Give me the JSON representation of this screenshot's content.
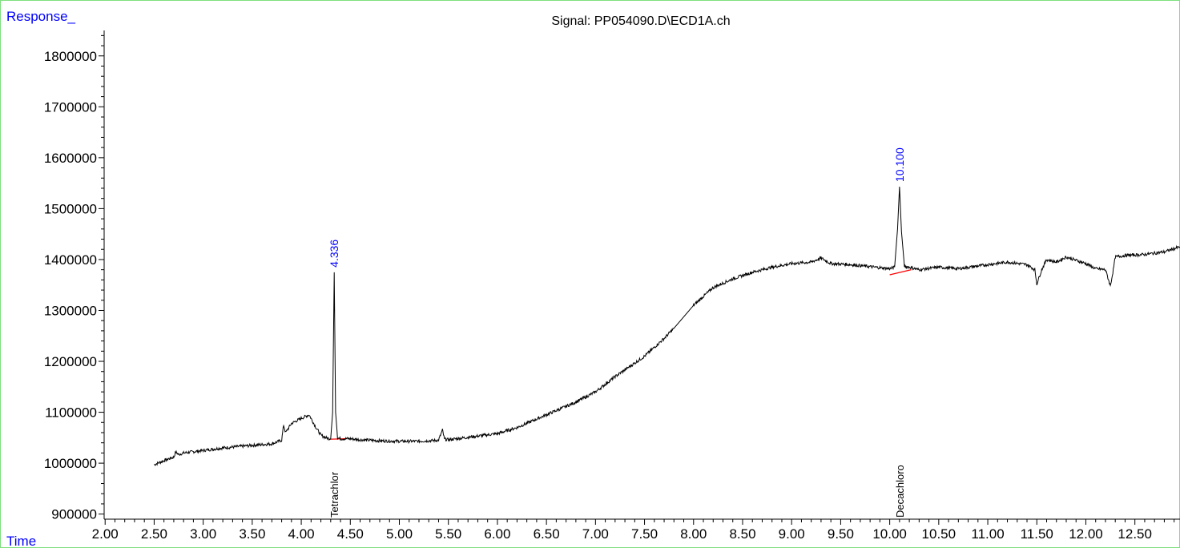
{
  "chart_data": {
    "type": "line",
    "title": "Signal: PP054090.D\\ECD1A.ch",
    "xlabel": "Time",
    "ylabel": "Response_",
    "xlim": [
      1.99,
      12.96
    ],
    "ylim": [
      890000,
      1850000
    ],
    "x_ticks": [
      "2.00",
      "2.50",
      "3.00",
      "3.50",
      "4.00",
      "4.50",
      "5.00",
      "5.50",
      "6.00",
      "6.50",
      "7.00",
      "7.50",
      "8.00",
      "8.50",
      "9.00",
      "9.50",
      "10.00",
      "10.50",
      "11.00",
      "11.50",
      "12.00",
      "12.50"
    ],
    "y_ticks": [
      "900000",
      "1000000",
      "1100000",
      "1200000",
      "1300000",
      "1400000",
      "1500000",
      "1600000",
      "1700000",
      "1800000"
    ],
    "series": [
      {
        "color": "#000000",
        "x": [
          2.5,
          2.6,
          2.7,
          2.72,
          2.75,
          2.8,
          3.0,
          3.2,
          3.5,
          3.7,
          3.8,
          3.82,
          3.84,
          3.9,
          4.0,
          4.08,
          4.15,
          4.2,
          4.25,
          4.3,
          4.32,
          4.336,
          4.35,
          4.37,
          4.4,
          4.5,
          4.6,
          4.8,
          5.0,
          5.2,
          5.4,
          5.44,
          5.46,
          5.5,
          6.0,
          6.2,
          6.5,
          6.8,
          7.0,
          7.2,
          7.5,
          7.7,
          7.8,
          8.0,
          8.2,
          8.4,
          8.6,
          8.8,
          9.0,
          9.2,
          9.3,
          9.4,
          9.6,
          9.8,
          10.0,
          10.05,
          10.08,
          10.1,
          10.12,
          10.15,
          10.2,
          10.3,
          10.5,
          10.7,
          11.0,
          11.2,
          11.4,
          11.48,
          11.5,
          11.55,
          11.6,
          11.7,
          11.8,
          12.0,
          12.1,
          12.2,
          12.25,
          12.28,
          12.3,
          12.4,
          12.6,
          12.8,
          12.96
        ],
        "y": [
          997000,
          1005000,
          1012000,
          1022000,
          1017000,
          1020000,
          1025000,
          1030000,
          1035000,
          1038000,
          1045000,
          1075000,
          1060000,
          1078000,
          1088000,
          1095000,
          1070000,
          1055000,
          1050000,
          1048000,
          1100000,
          1375000,
          1100000,
          1050000,
          1048000,
          1048000,
          1046000,
          1044000,
          1043000,
          1043000,
          1045000,
          1065000,
          1047000,
          1046000,
          1058000,
          1070000,
          1095000,
          1120000,
          1140000,
          1170000,
          1210000,
          1245000,
          1265000,
          1310000,
          1345000,
          1362000,
          1375000,
          1385000,
          1392000,
          1395000,
          1403000,
          1392000,
          1390000,
          1386000,
          1382000,
          1385000,
          1460000,
          1543000,
          1455000,
          1387000,
          1385000,
          1380000,
          1385000,
          1382000,
          1390000,
          1395000,
          1390000,
          1380000,
          1352000,
          1380000,
          1400000,
          1395000,
          1405000,
          1392000,
          1382000,
          1380000,
          1348000,
          1380000,
          1405000,
          1408000,
          1410000,
          1415000,
          1425000
        ]
      }
    ],
    "peaks": [
      {
        "rt": "4.336",
        "compound": "Tetrachlor",
        "x": 4.336,
        "y": 1375000
      },
      {
        "rt": "10.100",
        "compound": "Decachloro",
        "x": 10.1,
        "y": 1543000
      }
    ],
    "baselines": [
      {
        "color": "#ff0000",
        "x": [
          4.28,
          4.45
        ],
        "y": [
          1047000,
          1048000
        ]
      },
      {
        "color": "#ff0000",
        "x": [
          10.0,
          10.22
        ],
        "y": [
          1370000,
          1380000
        ]
      }
    ],
    "grid": false,
    "legend": "none"
  }
}
